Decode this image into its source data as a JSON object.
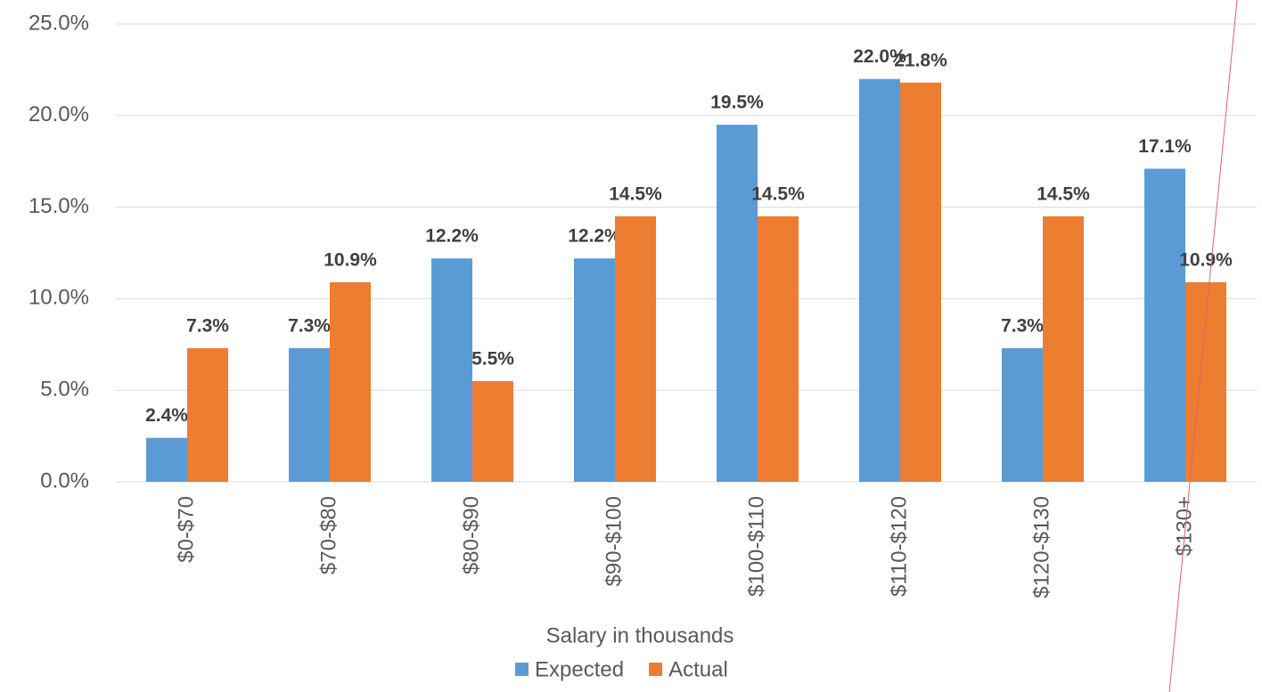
{
  "chart_data": {
    "type": "bar",
    "x_label": "Salary in thousands",
    "categories": [
      "$0-$70",
      "$70-$80",
      "$80-$90",
      "$90-$100",
      "$100-$110",
      "$110-$120",
      "$120-$130",
      "$130+"
    ],
    "series": [
      {
        "name": "Expected",
        "color": "#5b9bd5",
        "values": [
          2.4,
          7.3,
          12.2,
          12.2,
          19.5,
          22.0,
          7.3,
          17.1
        ],
        "value_labels": [
          "2.4%",
          "7.3%",
          "12.2%",
          "12.2%",
          "19.5%",
          "22.0%",
          "7.3%",
          "17.1%"
        ]
      },
      {
        "name": "Actual",
        "color": "#ed7d31",
        "values": [
          7.3,
          10.9,
          5.5,
          14.5,
          14.5,
          21.8,
          14.5,
          10.9
        ],
        "value_labels": [
          "7.3%",
          "10.9%",
          "5.5%",
          "14.5%",
          "14.5%",
          "21.8%",
          "14.5%",
          "10.9%"
        ]
      }
    ],
    "ylim": [
      0,
      25
    ],
    "yticks": [
      {
        "value": 0,
        "label": "0.0%"
      },
      {
        "value": 5,
        "label": "5.0%"
      },
      {
        "value": 10,
        "label": "10.0%"
      },
      {
        "value": 15,
        "label": "15.0%"
      },
      {
        "value": 20,
        "label": "20.0%"
      },
      {
        "value": 25,
        "label": "25.0%"
      }
    ],
    "grid": true,
    "legend": "bottom"
  }
}
